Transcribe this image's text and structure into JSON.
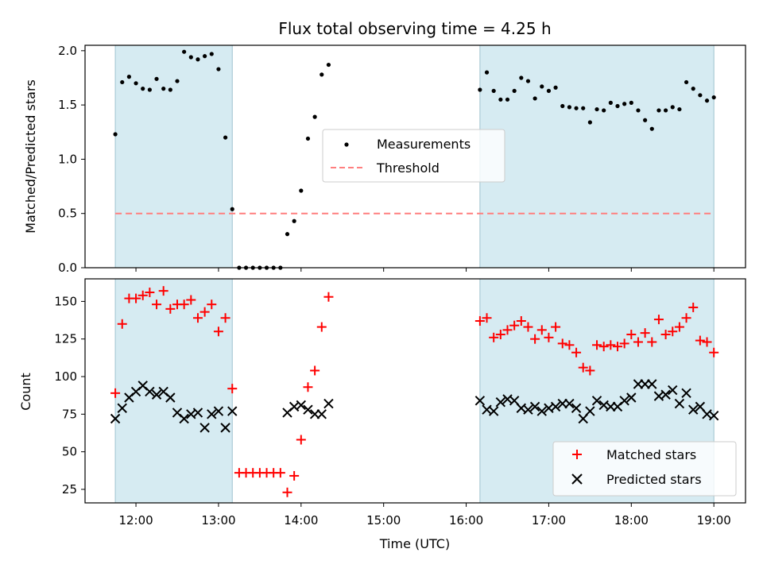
{
  "chart_data": [
    {
      "type": "scatter",
      "title": "Flux total observing time = 4.25 h",
      "ylabel": "Matched/Predicted stars",
      "xlabel": "",
      "xlim": [
        "11:23",
        "19:23"
      ],
      "ylim": [
        0,
        2.05
      ],
      "y_ticks": [
        0.0,
        0.5,
        1.0,
        1.5,
        2.0
      ],
      "legend_position": "center",
      "shaded_intervals": [
        [
          "11:45",
          "13:10"
        ],
        [
          "16:10",
          "19:00"
        ]
      ],
      "shade_color": "#add8e6",
      "threshold": {
        "name": "Threshold",
        "value": 0.5,
        "color": "#ff7f7f",
        "style": "dashed"
      },
      "series": [
        {
          "name": "Measurements",
          "color": "#000000",
          "marker": "dot",
          "x": [
            "11:45",
            "11:50",
            "11:55",
            "12:00",
            "12:05",
            "12:10",
            "12:15",
            "12:20",
            "12:25",
            "12:30",
            "12:35",
            "12:40",
            "12:45",
            "12:50",
            "12:55",
            "13:00",
            "13:05",
            "13:10",
            "13:15",
            "13:20",
            "13:25",
            "13:30",
            "13:35",
            "13:40",
            "13:45",
            "13:50",
            "13:55",
            "14:00",
            "14:05",
            "14:10",
            "14:15",
            "14:20",
            "16:10",
            "16:15",
            "16:20",
            "16:25",
            "16:30",
            "16:35",
            "16:40",
            "16:45",
            "16:50",
            "16:55",
            "17:00",
            "17:05",
            "17:10",
            "17:15",
            "17:20",
            "17:25",
            "17:30",
            "17:35",
            "17:40",
            "17:45",
            "17:50",
            "17:55",
            "18:00",
            "18:05",
            "18:10",
            "18:15",
            "18:20",
            "18:25",
            "18:30",
            "18:35",
            "18:40",
            "18:45",
            "18:50",
            "18:55",
            "19:00"
          ],
          "y": [
            1.23,
            1.71,
            1.76,
            1.7,
            1.65,
            1.64,
            1.74,
            1.65,
            1.64,
            1.72,
            1.99,
            1.94,
            1.92,
            1.95,
            1.97,
            1.83,
            1.2,
            0.54,
            0.0,
            0.0,
            0.0,
            0.0,
            0.0,
            0.0,
            0.0,
            0.31,
            0.43,
            0.71,
            1.19,
            1.39,
            1.78,
            1.87,
            1.64,
            1.8,
            1.63,
            1.55,
            1.55,
            1.63,
            1.75,
            1.72,
            1.56,
            1.67,
            1.63,
            1.66,
            1.49,
            1.48,
            1.47,
            1.47,
            1.34,
            1.46,
            1.45,
            1.52,
            1.49,
            1.51,
            1.52,
            1.45,
            1.36,
            1.28,
            1.45,
            1.45,
            1.48,
            1.46,
            1.71,
            1.65,
            1.59,
            1.54,
            1.57
          ]
        }
      ]
    },
    {
      "type": "scatter",
      "title": "",
      "xlabel": "Time (UTC)",
      "ylabel": "Count",
      "xlim": [
        "11:23",
        "19:23"
      ],
      "ylim": [
        16,
        165
      ],
      "x_ticks": [
        "12:00",
        "13:00",
        "14:00",
        "15:00",
        "16:00",
        "17:00",
        "18:00",
        "19:00"
      ],
      "y_ticks": [
        25,
        50,
        75,
        100,
        125,
        150
      ],
      "legend_position": "lower right",
      "shaded_intervals": [
        [
          "11:45",
          "13:10"
        ],
        [
          "16:10",
          "19:00"
        ]
      ],
      "shade_color": "#add8e6",
      "series": [
        {
          "name": "Matched stars",
          "color": "#ff0000",
          "marker": "plus",
          "x": [
            "11:45",
            "11:50",
            "11:55",
            "12:00",
            "12:05",
            "12:10",
            "12:15",
            "12:20",
            "12:25",
            "12:30",
            "12:35",
            "12:40",
            "12:45",
            "12:50",
            "12:55",
            "13:00",
            "13:05",
            "13:10",
            "13:15",
            "13:20",
            "13:25",
            "13:30",
            "13:35",
            "13:40",
            "13:45",
            "13:50",
            "13:55",
            "14:00",
            "14:05",
            "14:10",
            "14:15",
            "14:20",
            "16:10",
            "16:15",
            "16:20",
            "16:25",
            "16:30",
            "16:35",
            "16:40",
            "16:45",
            "16:50",
            "16:55",
            "17:00",
            "17:05",
            "17:10",
            "17:15",
            "17:20",
            "17:25",
            "17:30",
            "17:35",
            "17:40",
            "17:45",
            "17:50",
            "17:55",
            "18:00",
            "18:05",
            "18:10",
            "18:15",
            "18:20",
            "18:25",
            "18:30",
            "18:35",
            "18:40",
            "18:45",
            "18:50",
            "18:55",
            "19:00"
          ],
          "y": [
            89,
            135,
            152,
            152,
            154,
            156,
            148,
            157,
            145,
            148,
            148,
            151,
            139,
            143,
            148,
            130,
            139,
            92,
            36,
            36,
            36,
            36,
            36,
            36,
            36,
            23,
            34,
            58,
            93,
            104,
            133,
            153,
            137,
            139,
            126,
            128,
            131,
            134,
            137,
            133,
            125,
            131,
            126,
            133,
            122,
            121,
            116,
            106,
            104,
            121,
            120,
            121,
            120,
            122,
            128,
            123,
            129,
            123,
            138,
            128,
            130,
            133,
            139,
            146,
            124,
            123,
            116
          ]
        },
        {
          "name": "Predicted stars",
          "color": "#000000",
          "marker": "x",
          "x": [
            "11:45",
            "11:50",
            "11:55",
            "12:00",
            "12:05",
            "12:10",
            "12:15",
            "12:20",
            "12:25",
            "12:30",
            "12:35",
            "12:40",
            "12:45",
            "12:50",
            "12:55",
            "13:00",
            "13:05",
            "13:10",
            "13:50",
            "13:55",
            "14:00",
            "14:05",
            "14:10",
            "14:15",
            "14:20",
            "16:10",
            "16:15",
            "16:20",
            "16:25",
            "16:30",
            "16:35",
            "16:40",
            "16:45",
            "16:50",
            "16:55",
            "17:00",
            "17:05",
            "17:10",
            "17:15",
            "17:20",
            "17:25",
            "17:30",
            "17:35",
            "17:40",
            "17:45",
            "17:50",
            "17:55",
            "18:00",
            "18:05",
            "18:10",
            "18:15",
            "18:20",
            "18:25",
            "18:30",
            "18:35",
            "18:40",
            "18:45",
            "18:50",
            "18:55",
            "19:00"
          ],
          "y": [
            72,
            79,
            86,
            90,
            94,
            90,
            88,
            90,
            86,
            76,
            72,
            75,
            76,
            66,
            75,
            77,
            66,
            77,
            76,
            80,
            81,
            78,
            75,
            75,
            82,
            84,
            78,
            77,
            83,
            85,
            84,
            79,
            78,
            80,
            77,
            79,
            80,
            82,
            82,
            79,
            72,
            77,
            84,
            81,
            80,
            80,
            84,
            86,
            95,
            95,
            95,
            87,
            88,
            91,
            82,
            89,
            78,
            80,
            75,
            74
          ]
        }
      ]
    }
  ]
}
